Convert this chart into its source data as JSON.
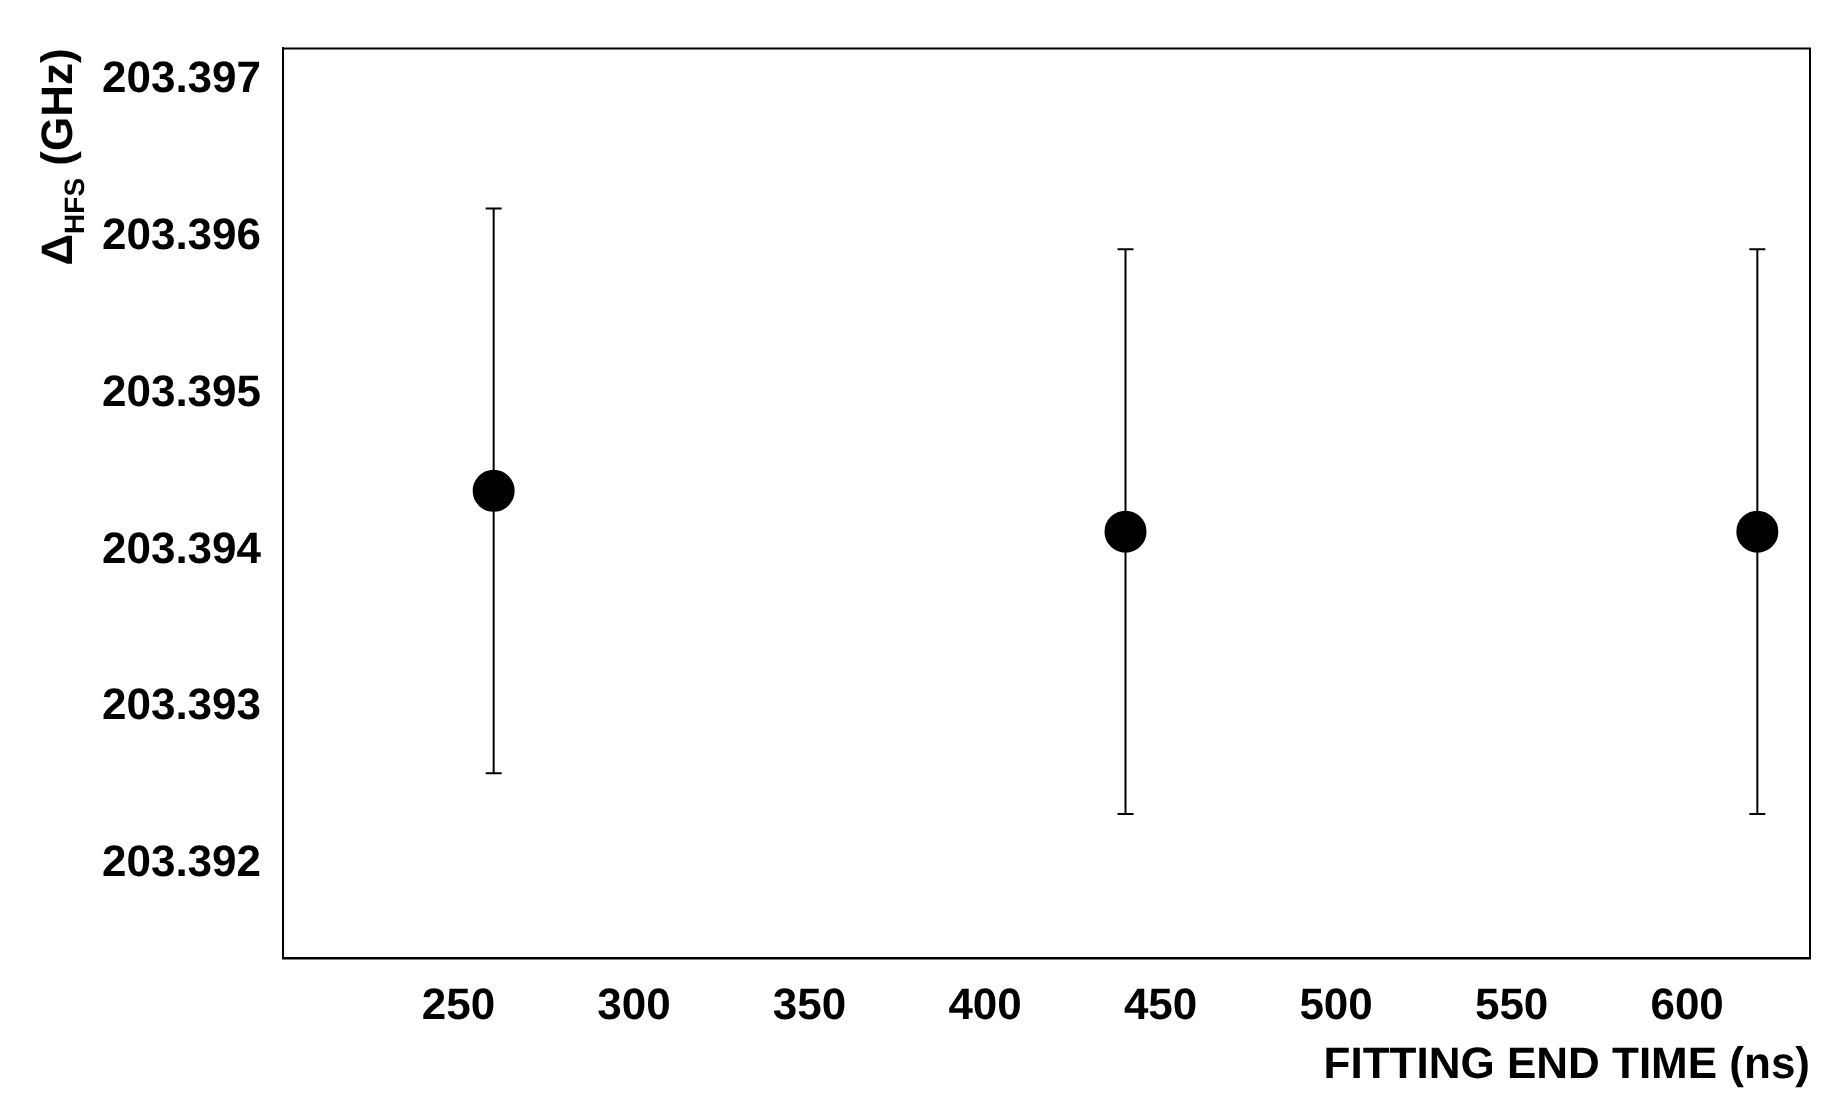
{
  "chart_data": {
    "type": "scatter",
    "xlabel": "FITTING END TIME (ns)",
    "ylabel": "Δ$_{HFS}$ (GHz)",
    "x": [
      260,
      440,
      620
    ],
    "series": [
      {
        "color": "#000000",
        "values": [
          203.39438,
          203.39412,
          203.39412
        ],
        "errors": [
          0.0018,
          0.0018,
          0.0018
        ]
      }
    ],
    "xlim": [
      200,
      635
    ],
    "xticks": [
      250,
      300,
      350,
      400,
      450,
      500,
      550,
      600
    ],
    "ylim": [
      203.3914,
      203.3972
    ],
    "yticks": [
      203.392,
      203.393,
      203.394,
      203.395,
      203.396,
      203.397
    ],
    "marker": "circle",
    "grid": false,
    "legend": false
  }
}
